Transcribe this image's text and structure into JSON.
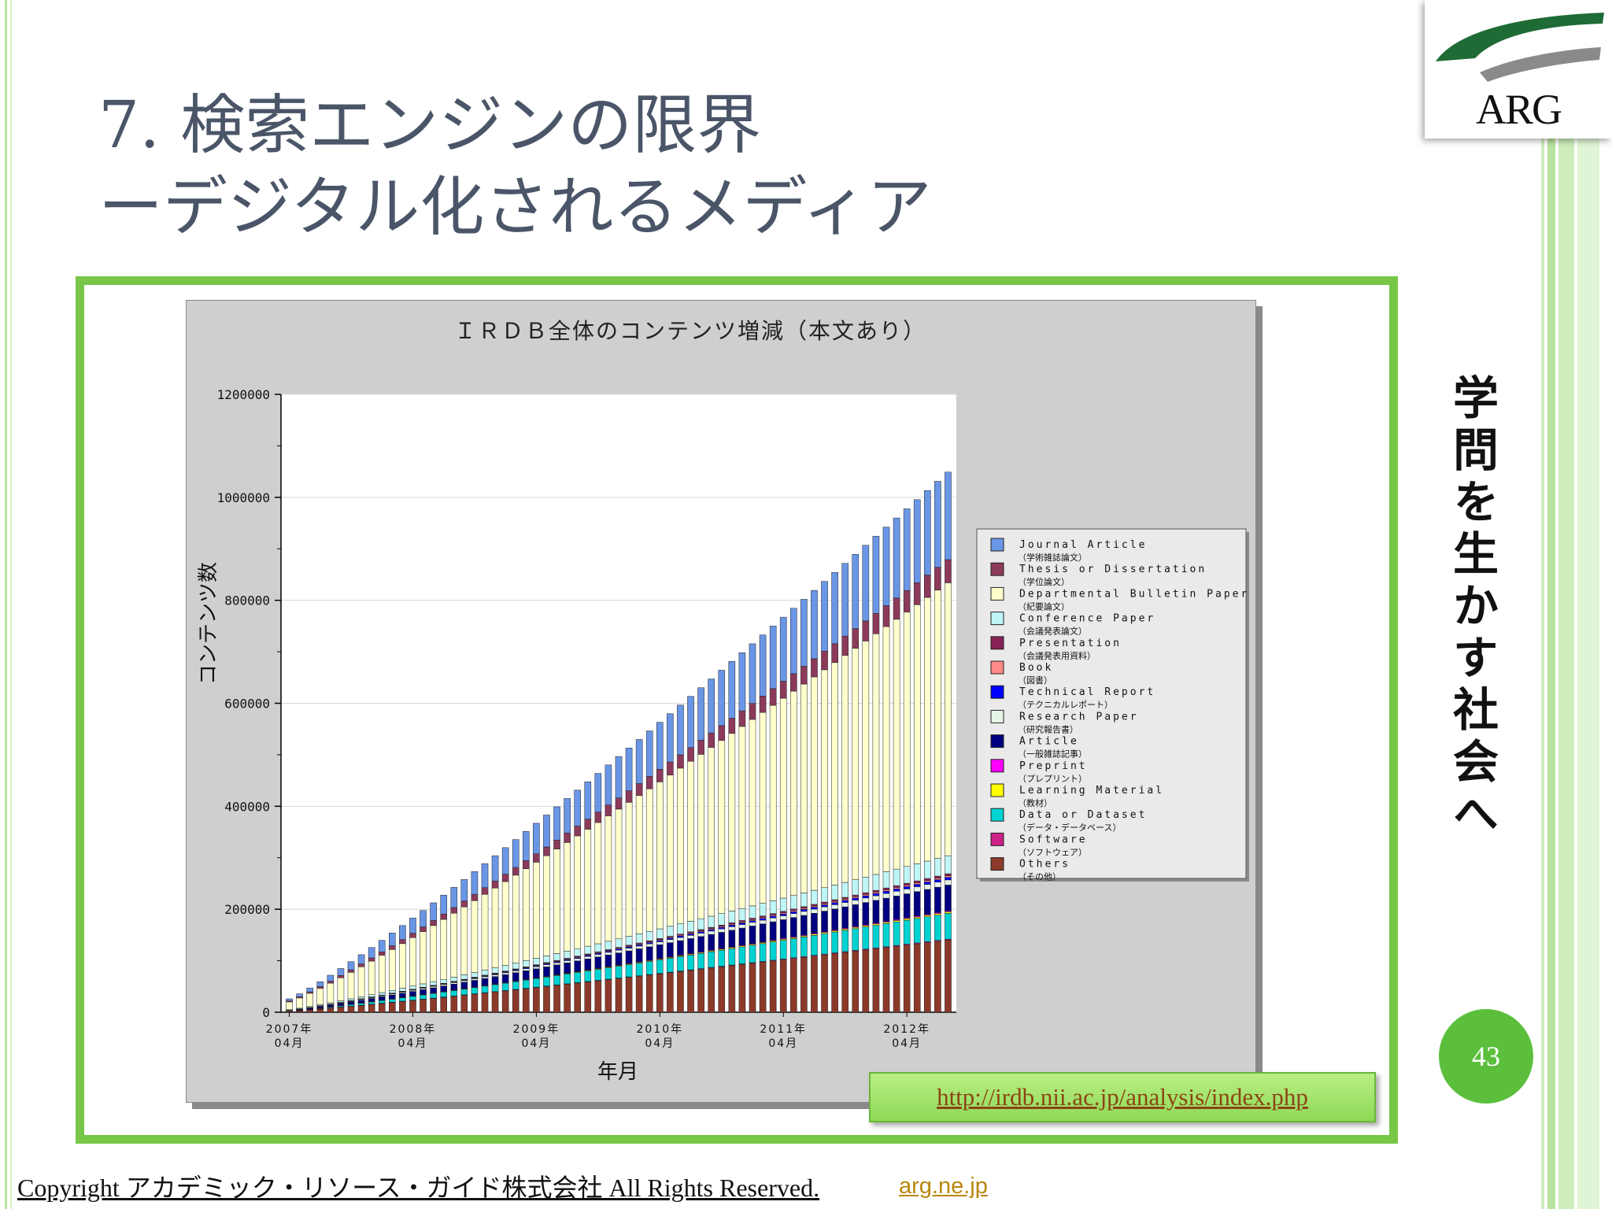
{
  "slide": {
    "title_line1": "7. 検索エンジンの限界",
    "title_line2": "ーデジタル化されるメディア",
    "logo_text": "ARG",
    "vertical_text": "学問を生かす社会へ",
    "page_number": "43",
    "source_url": "http://irdb.nii.ac.jp/analysis/index.php",
    "copyright": "Copyright アカデミック・リソース・ガイド株式会社 All Rights Reserved.",
    "site_link": "arg.ne.jp",
    "colors": {
      "accent_green": "#77c647",
      "title_gray": "#4a5568",
      "badge_green": "#5bbf3c",
      "logo_green": "#1e6b35"
    }
  },
  "chart_data": {
    "type": "bar",
    "stacked": true,
    "title": "ＩＲＤＢ全体のコンテンツ増減（本文あり）",
    "xlabel": "年月",
    "ylabel": "コンテンツ数",
    "ylim": [
      0,
      1200000
    ],
    "yticks": [
      "0",
      "200000",
      "400000",
      "600000",
      "800000",
      "1000000",
      "1200000"
    ],
    "yticks_values": [
      0,
      200000,
      400000,
      600000,
      800000,
      1000000,
      1200000
    ],
    "grid": true,
    "legend_position": "right",
    "x_ticks": [
      {
        "index": 0,
        "line1": "2007年",
        "line2": "04月"
      },
      {
        "index": 12,
        "line1": "2008年",
        "line2": "04月"
      },
      {
        "index": 24,
        "line1": "2009年",
        "line2": "04月"
      },
      {
        "index": 36,
        "line1": "2010年",
        "line2": "04月"
      },
      {
        "index": 48,
        "line1": "2011年",
        "line2": "04月"
      },
      {
        "index": 60,
        "line1": "2012年",
        "line2": "04月"
      }
    ],
    "categories_start": "2007-04",
    "categories_count": 65,
    "series": [
      {
        "name": "Others",
        "sub": "（その他）",
        "color": "#8b3a2a",
        "start": 2000,
        "end": 140000
      },
      {
        "name": "Software",
        "sub": "（ソフトウェア）",
        "color": "#cc2288",
        "start": 0,
        "end": 2000
      },
      {
        "name": "Data or Dataset",
        "sub": "（データ・データベース）",
        "color": "#00d2d2",
        "start": 0,
        "end": 50000
      },
      {
        "name": "Learning Material",
        "sub": "（教材）",
        "color": "#ffff00",
        "start": 0,
        "end": 3000
      },
      {
        "name": "Preprint",
        "sub": "（プレプリント）",
        "color": "#ff00ff",
        "start": 0,
        "end": 2000
      },
      {
        "name": "Article",
        "sub": "（一般雑誌記事）",
        "color": "#000080",
        "start": 1000,
        "end": 50000
      },
      {
        "name": "Research Paper",
        "sub": "（研究報告書）",
        "color": "#e6f5e6",
        "start": 1000,
        "end": 10000
      },
      {
        "name": "Technical Report",
        "sub": "（テクニカルレポート）",
        "color": "#0000ff",
        "start": 0,
        "end": 5000
      },
      {
        "name": "Book",
        "sub": "（図書）",
        "color": "#ff8888",
        "start": 0,
        "end": 3000
      },
      {
        "name": "Presentation",
        "sub": "（会議発表用資料）",
        "color": "#882255",
        "start": 0,
        "end": 4000
      },
      {
        "name": "Conference Paper",
        "sub": "（会議発表論文）",
        "color": "#bff5f5",
        "start": 1000,
        "end": 35000
      },
      {
        "name": "Departmental Bulletin Paper",
        "sub": "（紀要論文）",
        "color": "#ffffcc",
        "start": 15000,
        "end": 530000
      },
      {
        "name": "Thesis or Dissertation",
        "sub": "（学位論文）",
        "color": "#8b3a5a",
        "start": 2000,
        "end": 45000
      },
      {
        "name": "Journal Article",
        "sub": "（学術雑誌論文）",
        "color": "#6a96e6",
        "start": 4000,
        "end": 170000
      }
    ],
    "legend_order": [
      "Journal Article",
      "Thesis or Dissertation",
      "Departmental Bulletin Paper",
      "Conference Paper",
      "Presentation",
      "Book",
      "Technical Report",
      "Research Paper",
      "Article",
      "Preprint",
      "Learning Material",
      "Data or Dataset",
      "Software",
      "Others"
    ]
  }
}
